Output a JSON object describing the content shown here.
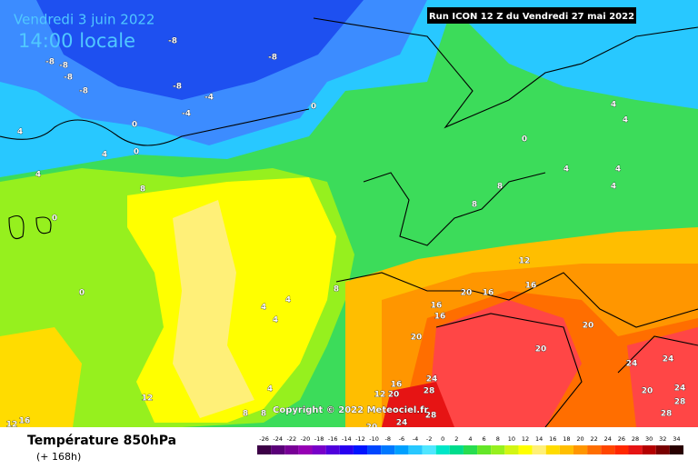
{
  "header": {
    "date": "Vendredi 3 juin 2022",
    "time": "14:00 locale",
    "run": "Run ICON 12 Z du Vendredi 27 mai 2022"
  },
  "copyright": "Copyright © 2022 Meteociel.fr",
  "footer": {
    "title": "Température 850hPa",
    "subtitle": "(+ 168h)"
  },
  "map_labels": [
    -8,
    -8,
    -8,
    -4,
    -4,
    -8,
    -8,
    -8,
    -8,
    0,
    0,
    0,
    4,
    4,
    4,
    8,
    8,
    4,
    4,
    4,
    0,
    0,
    4,
    4,
    0,
    4,
    4,
    4,
    8,
    8,
    12,
    16,
    16,
    16,
    20,
    16,
    20,
    20,
    20,
    24,
    24,
    20,
    24,
    28,
    24,
    28,
    28,
    28,
    12,
    12,
    20,
    16,
    24,
    20,
    16,
    12,
    8,
    8,
    4
  ],
  "legend": {
    "values": [
      -26,
      -24,
      -22,
      -20,
      -18,
      -16,
      -14,
      -12,
      -10,
      -8,
      -6,
      -4,
      -2,
      0,
      2,
      4,
      6,
      8,
      10,
      12,
      14,
      16,
      18,
      20,
      22,
      24,
      26,
      28,
      30,
      32,
      34
    ],
    "colors": [
      "#3c0046",
      "#5a0078",
      "#780096",
      "#9600b4",
      "#7800c8",
      "#5000dc",
      "#2800f0",
      "#0014ff",
      "#0046ff",
      "#0078ff",
      "#00a0ff",
      "#28c8ff",
      "#50e6ff",
      "#00e6c8",
      "#00dc8c",
      "#28dc50",
      "#64e628",
      "#96f01e",
      "#d2f514",
      "#ffff00",
      "#fff078",
      "#ffdc00",
      "#ffbe00",
      "#ff9600",
      "#ff6e00",
      "#ff4600",
      "#ff2800",
      "#e61414",
      "#b40000",
      "#780000",
      "#280000"
    ]
  }
}
